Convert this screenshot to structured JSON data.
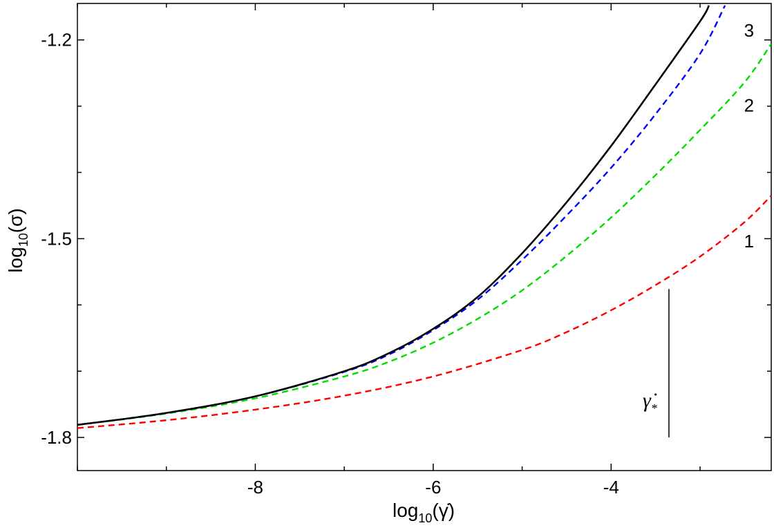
{
  "chart_data": {
    "type": "line",
    "xlabel_base": "log",
    "xlabel_sub": "10",
    "xlabel_arg": "(γ̇)",
    "ylabel_base": "log",
    "ylabel_sub": "10",
    "ylabel_arg": "(σ)",
    "xlim": [
      -10.0,
      -2.2
    ],
    "ylim": [
      -1.85,
      -1.145
    ],
    "x_ticks": [
      -8,
      -6,
      -4
    ],
    "x_tick_labels": [
      "-8",
      "-6",
      "-4"
    ],
    "y_ticks": [
      -1.2,
      -1.5,
      -1.8
    ],
    "y_tick_labels": [
      "-1.2",
      "-1.5",
      "-1.8"
    ],
    "grid": false,
    "series": [
      {
        "label": "",
        "color": "#000000",
        "dash": "solid",
        "x": [
          -10,
          -9,
          -8,
          -7,
          -6.5,
          -6,
          -5.5,
          -5,
          -4.5,
          -4,
          -3.5,
          -3,
          -2.9
        ],
        "y": [
          -1.781,
          -1.763,
          -1.738,
          -1.7,
          -1.673,
          -1.636,
          -1.588,
          -1.522,
          -1.445,
          -1.36,
          -1.267,
          -1.172,
          -1.148
        ]
      },
      {
        "label": "3",
        "color": "#0000ff",
        "dash": "dashed",
        "x": [
          -10,
          -9,
          -8,
          -7,
          -6.5,
          -6,
          -5.5,
          -5,
          -4.5,
          -4,
          -3.5,
          -3,
          -2.72
        ],
        "y": [
          -1.781,
          -1.763,
          -1.738,
          -1.701,
          -1.675,
          -1.638,
          -1.592,
          -1.532,
          -1.465,
          -1.393,
          -1.312,
          -1.221,
          -1.148
        ]
      },
      {
        "label": "2",
        "color": "#00dd00",
        "dash": "dashed",
        "x": [
          -10,
          -9,
          -8,
          -7,
          -6.5,
          -6,
          -5.5,
          -5,
          -4.5,
          -4,
          -3.5,
          -3,
          -2.5,
          -2.2
        ],
        "y": [
          -1.781,
          -1.764,
          -1.741,
          -1.708,
          -1.686,
          -1.657,
          -1.621,
          -1.578,
          -1.526,
          -1.468,
          -1.404,
          -1.336,
          -1.264,
          -1.206
        ]
      },
      {
        "label": "1",
        "color": "#ff0000",
        "dash": "dashed",
        "x": [
          -10,
          -9,
          -8,
          -7,
          -6,
          -5,
          -4.5,
          -4,
          -3.5,
          -3,
          -2.5,
          -2.2
        ],
        "y": [
          -1.786,
          -1.774,
          -1.758,
          -1.737,
          -1.708,
          -1.668,
          -1.641,
          -1.608,
          -1.57,
          -1.527,
          -1.475,
          -1.435
        ]
      }
    ],
    "annotation": {
      "label": "γ̇",
      "sub": "*",
      "x": -3.35,
      "y_range": [
        -1.8,
        -1.576
      ]
    }
  }
}
